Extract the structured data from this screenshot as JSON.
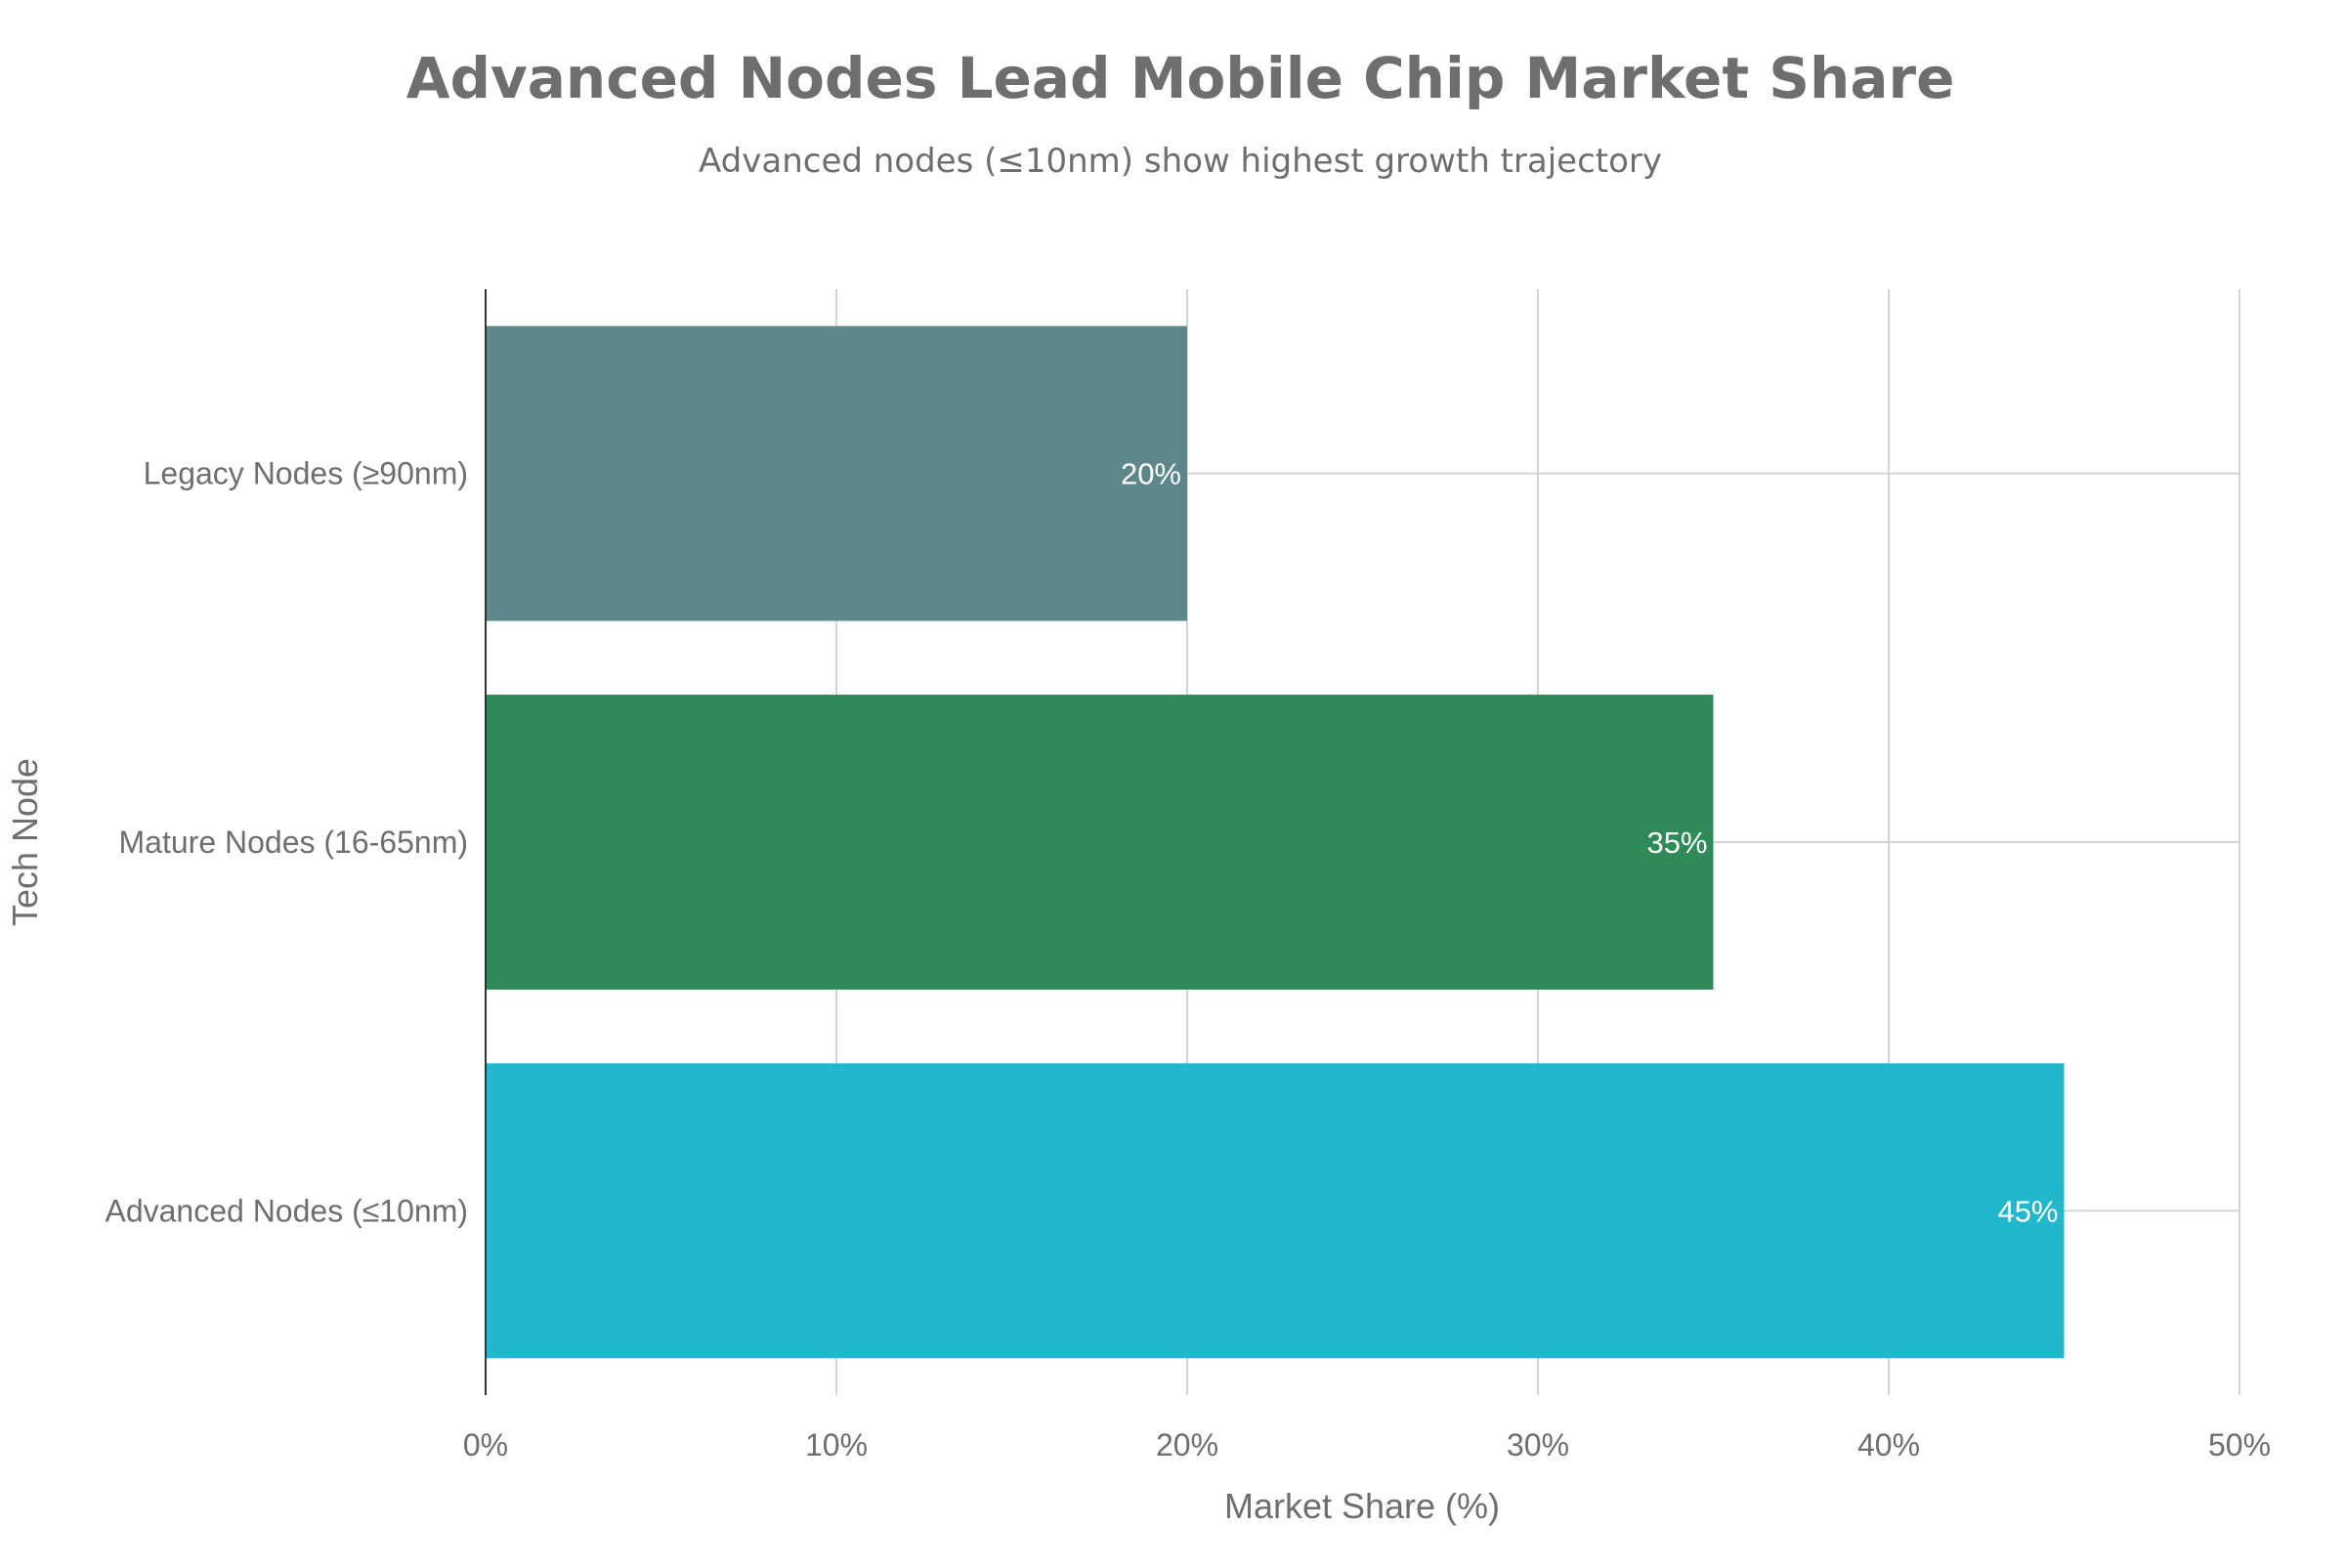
{
  "chart_data": {
    "type": "bar",
    "orientation": "horizontal",
    "title": "Advanced Nodes Lead Mobile Chip Market Share",
    "subtitle": "Advanced nodes (≤10nm) show highest growth trajectory",
    "xlabel": "Market Share (%)",
    "ylabel": "Tech Node",
    "xlim": [
      0,
      50
    ],
    "x_ticks": [
      0,
      10,
      20,
      30,
      40,
      50
    ],
    "x_tick_labels": [
      "0%",
      "10%",
      "20%",
      "30%",
      "40%",
      "50%"
    ],
    "categories": [
      "Legacy Nodes (≥90nm)",
      "Mature Nodes (16-65nm)",
      "Advanced Nodes (≤10nm)"
    ],
    "values": [
      20,
      35,
      45
    ],
    "data_labels": [
      "20%",
      "35%",
      "45%"
    ],
    "colors": [
      "#5d878b",
      "#2e8b57",
      "#21b7cd"
    ],
    "grid": true,
    "legend": "none"
  }
}
